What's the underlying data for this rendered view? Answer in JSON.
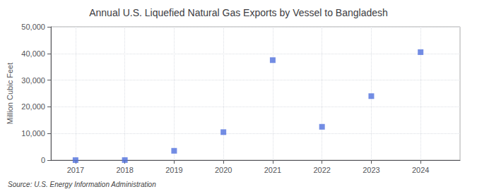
{
  "chart_data": {
    "type": "scatter",
    "title": "Annual U.S. Liquefied Natural Gas Exports by Vessel to Bangladesh",
    "ylabel": "Million Cubic Feet",
    "annotation": "Source: U.S. Energy Information Administration",
    "x": [
      2017,
      2018,
      2019,
      2020,
      2021,
      2022,
      2023,
      2024
    ],
    "values": [
      10,
      30,
      3500,
      10500,
      37500,
      12500,
      24000,
      40500
    ],
    "marker": "square",
    "xlim": [
      2016.5,
      2024.8
    ],
    "xticks": [
      2017,
      2018,
      2019,
      2020,
      2021,
      2022,
      2023,
      2024
    ],
    "ylim": [
      0,
      50000
    ],
    "yticks": [
      0,
      {
        "value": 10000,
        "label": "10,000"
      },
      {
        "value": 20000,
        "label": "20,000"
      },
      {
        "value": 30000,
        "label": "30,000"
      },
      {
        "value": 40000,
        "label": "40,000"
      },
      {
        "value": 50000,
        "label": "50,000"
      }
    ],
    "grid": true
  }
}
